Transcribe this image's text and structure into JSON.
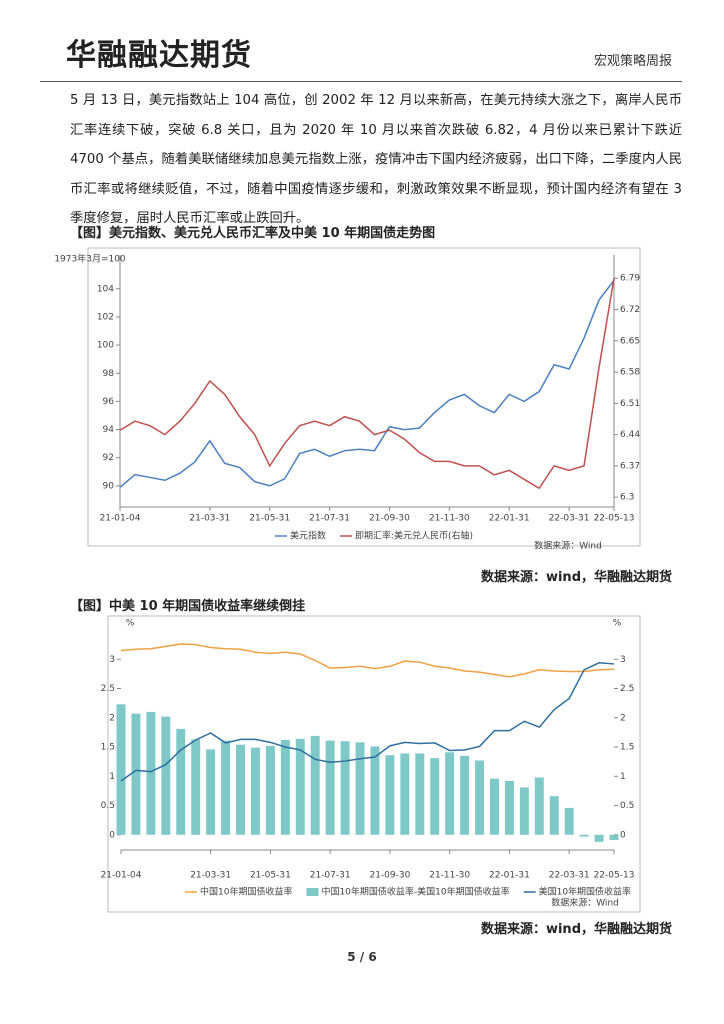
{
  "header": {
    "brand": "华融融达期货",
    "report": "宏观策略周报"
  },
  "paragraph": "5 月 13 日，美元指数站上 104 高位，创 2002 年 12 月以来新高，在美元持续大涨之下，离岸人民币汇率连续下破，突破 6.8 关口，且为 2020 年 10 月以来首次跌破 6.82，4 月份以来已累计下跌近 4700 个基点，随着美联储继续加息美元指数上涨，疫情冲击下国内经济疲弱，出口下降，二季度内人民币汇率或将继续贬值，不过，随着中国疫情逐步缓和，刺激政策效果不断显现，预计国内经济有望在 3 季度修复，届时人民币汇率或止跌回升。",
  "footer": "5 / 6",
  "chart_data": [
    {
      "type": "line",
      "title": "【图】美元指数、美元兑人民币汇率及中美 10 年期国债走势图",
      "ylabel": "1973年3月=100",
      "note": "数据来源：Wind",
      "source": "数据来源：wind，华融融达期货",
      "x": [
        "21-01-04",
        "21-01-15",
        "21-01-31",
        "21-02-15",
        "21-02-28",
        "21-03-15",
        "21-03-31",
        "21-04-15",
        "21-04-30",
        "21-05-15",
        "21-05-31",
        "21-06-15",
        "21-06-30",
        "21-07-15",
        "21-07-31",
        "21-08-15",
        "21-08-31",
        "21-09-15",
        "21-09-30",
        "21-10-15",
        "21-10-31",
        "21-11-15",
        "21-11-30",
        "21-12-15",
        "21-12-31",
        "22-01-15",
        "22-01-31",
        "22-02-15",
        "22-02-28",
        "22-03-15",
        "22-03-31",
        "22-04-15",
        "22-04-30",
        "22-05-13"
      ],
      "xticks": [
        "21-01-04",
        "21-03-31",
        "21-05-31",
        "21-07-31",
        "21-09-30",
        "21-11-30",
        "22-01-31",
        "22-03-31",
        "22-05-13"
      ],
      "ylim": [
        88.5,
        106.4
      ],
      "yticks": [
        90,
        92,
        94,
        96,
        98,
        100,
        102,
        104
      ],
      "y2lim": [
        6.278,
        6.842
      ],
      "y2ticks": [
        {
          "value": 6.3,
          "label": "6.3"
        },
        6.37,
        6.44,
        6.51,
        6.58,
        6.65,
        6.72,
        6.79
      ],
      "series": [
        {
          "name": "美元指数",
          "color": "#4a7fc1",
          "values": [
            89.9,
            90.8,
            90.6,
            90.4,
            90.9,
            91.7,
            93.2,
            91.6,
            91.3,
            90.3,
            90.0,
            90.5,
            92.3,
            92.6,
            92.1,
            92.5,
            92.6,
            92.5,
            94.2,
            94.0,
            94.1,
            95.2,
            96.1,
            96.5,
            95.7,
            95.2,
            96.5,
            96.0,
            96.7,
            98.6,
            98.3,
            100.5,
            103.2,
            104.6
          ]
        },
        {
          "name": "即期汇率:美元兑人民币(右轴)",
          "color": "#c0504d",
          "axis": "y2",
          "values": [
            6.45,
            6.47,
            6.46,
            6.44,
            6.47,
            6.51,
            6.56,
            6.53,
            6.48,
            6.44,
            6.37,
            6.42,
            6.46,
            6.47,
            6.46,
            6.48,
            6.47,
            6.44,
            6.45,
            6.43,
            6.4,
            6.38,
            6.38,
            6.37,
            6.37,
            6.35,
            6.36,
            6.34,
            6.32,
            6.37,
            6.36,
            6.37,
            6.59,
            6.79
          ]
        }
      ]
    },
    {
      "type": "line",
      "title": "【图】中美 10 年期国债收益率继续倒挂",
      "ylabel": "%",
      "y2label": "%",
      "note": "数据来源：Wind",
      "source": "数据来源：wind，华融融达期货",
      "x": [
        "21-01-04",
        "21-01-15",
        "21-01-31",
        "21-02-15",
        "21-02-28",
        "21-03-15",
        "21-03-31",
        "21-04-15",
        "21-04-30",
        "21-05-15",
        "21-05-31",
        "21-06-15",
        "21-06-30",
        "21-07-15",
        "21-07-31",
        "21-08-15",
        "21-08-31",
        "21-09-15",
        "21-09-30",
        "21-10-15",
        "21-10-31",
        "21-11-15",
        "21-11-30",
        "21-12-15",
        "21-12-31",
        "22-01-15",
        "22-01-31",
        "22-02-15",
        "22-02-28",
        "22-03-15",
        "22-03-31",
        "22-04-15",
        "22-04-30",
        "22-05-13"
      ],
      "xticks": [
        "21-01-04",
        "21-03-31",
        "21-05-31",
        "21-07-31",
        "21-09-30",
        "21-11-30",
        "22-01-31",
        "22-03-31",
        "22-05-13"
      ],
      "ylim": [
        -0.26,
        3.5
      ],
      "yticks": [
        0,
        0.5,
        1,
        1.5,
        2,
        2.5,
        3
      ],
      "y2lim": [
        -0.26,
        3.5
      ],
      "y2ticks": [
        0,
        0.5,
        1,
        1.5,
        2,
        2.5,
        3
      ],
      "series": [
        {
          "name": "中国10年期国债收益率",
          "color": "#f0a040",
          "values": [
            3.15,
            3.17,
            3.18,
            3.22,
            3.26,
            3.25,
            3.2,
            3.18,
            3.17,
            3.12,
            3.1,
            3.12,
            3.09,
            2.98,
            2.85,
            2.86,
            2.88,
            2.84,
            2.88,
            2.97,
            2.95,
            2.88,
            2.85,
            2.8,
            2.78,
            2.74,
            2.7,
            2.75,
            2.82,
            2.8,
            2.79,
            2.79,
            2.82,
            2.83
          ]
        },
        {
          "name": "中国10年期国债收益率-美国10年期国债收益率",
          "color": "#7ec8c8",
          "type": "bar",
          "values": [
            2.23,
            2.07,
            2.1,
            2.02,
            1.81,
            1.63,
            1.46,
            1.61,
            1.54,
            1.49,
            1.52,
            1.62,
            1.64,
            1.69,
            1.61,
            1.6,
            1.58,
            1.51,
            1.36,
            1.39,
            1.39,
            1.31,
            1.41,
            1.35,
            1.27,
            0.96,
            0.92,
            0.81,
            0.98,
            0.66,
            0.46,
            -0.03,
            -0.12,
            -0.09
          ]
        },
        {
          "name": "美国10年期国债收益率",
          "color": "#2e6fa0",
          "axis": "y2",
          "values": [
            0.92,
            1.1,
            1.08,
            1.2,
            1.45,
            1.62,
            1.74,
            1.57,
            1.63,
            1.63,
            1.58,
            1.5,
            1.45,
            1.29,
            1.24,
            1.26,
            1.3,
            1.33,
            1.52,
            1.58,
            1.56,
            1.57,
            1.44,
            1.45,
            1.51,
            1.78,
            1.78,
            1.94,
            1.84,
            2.14,
            2.33,
            2.82,
            2.94,
            2.92
          ]
        }
      ]
    }
  ]
}
